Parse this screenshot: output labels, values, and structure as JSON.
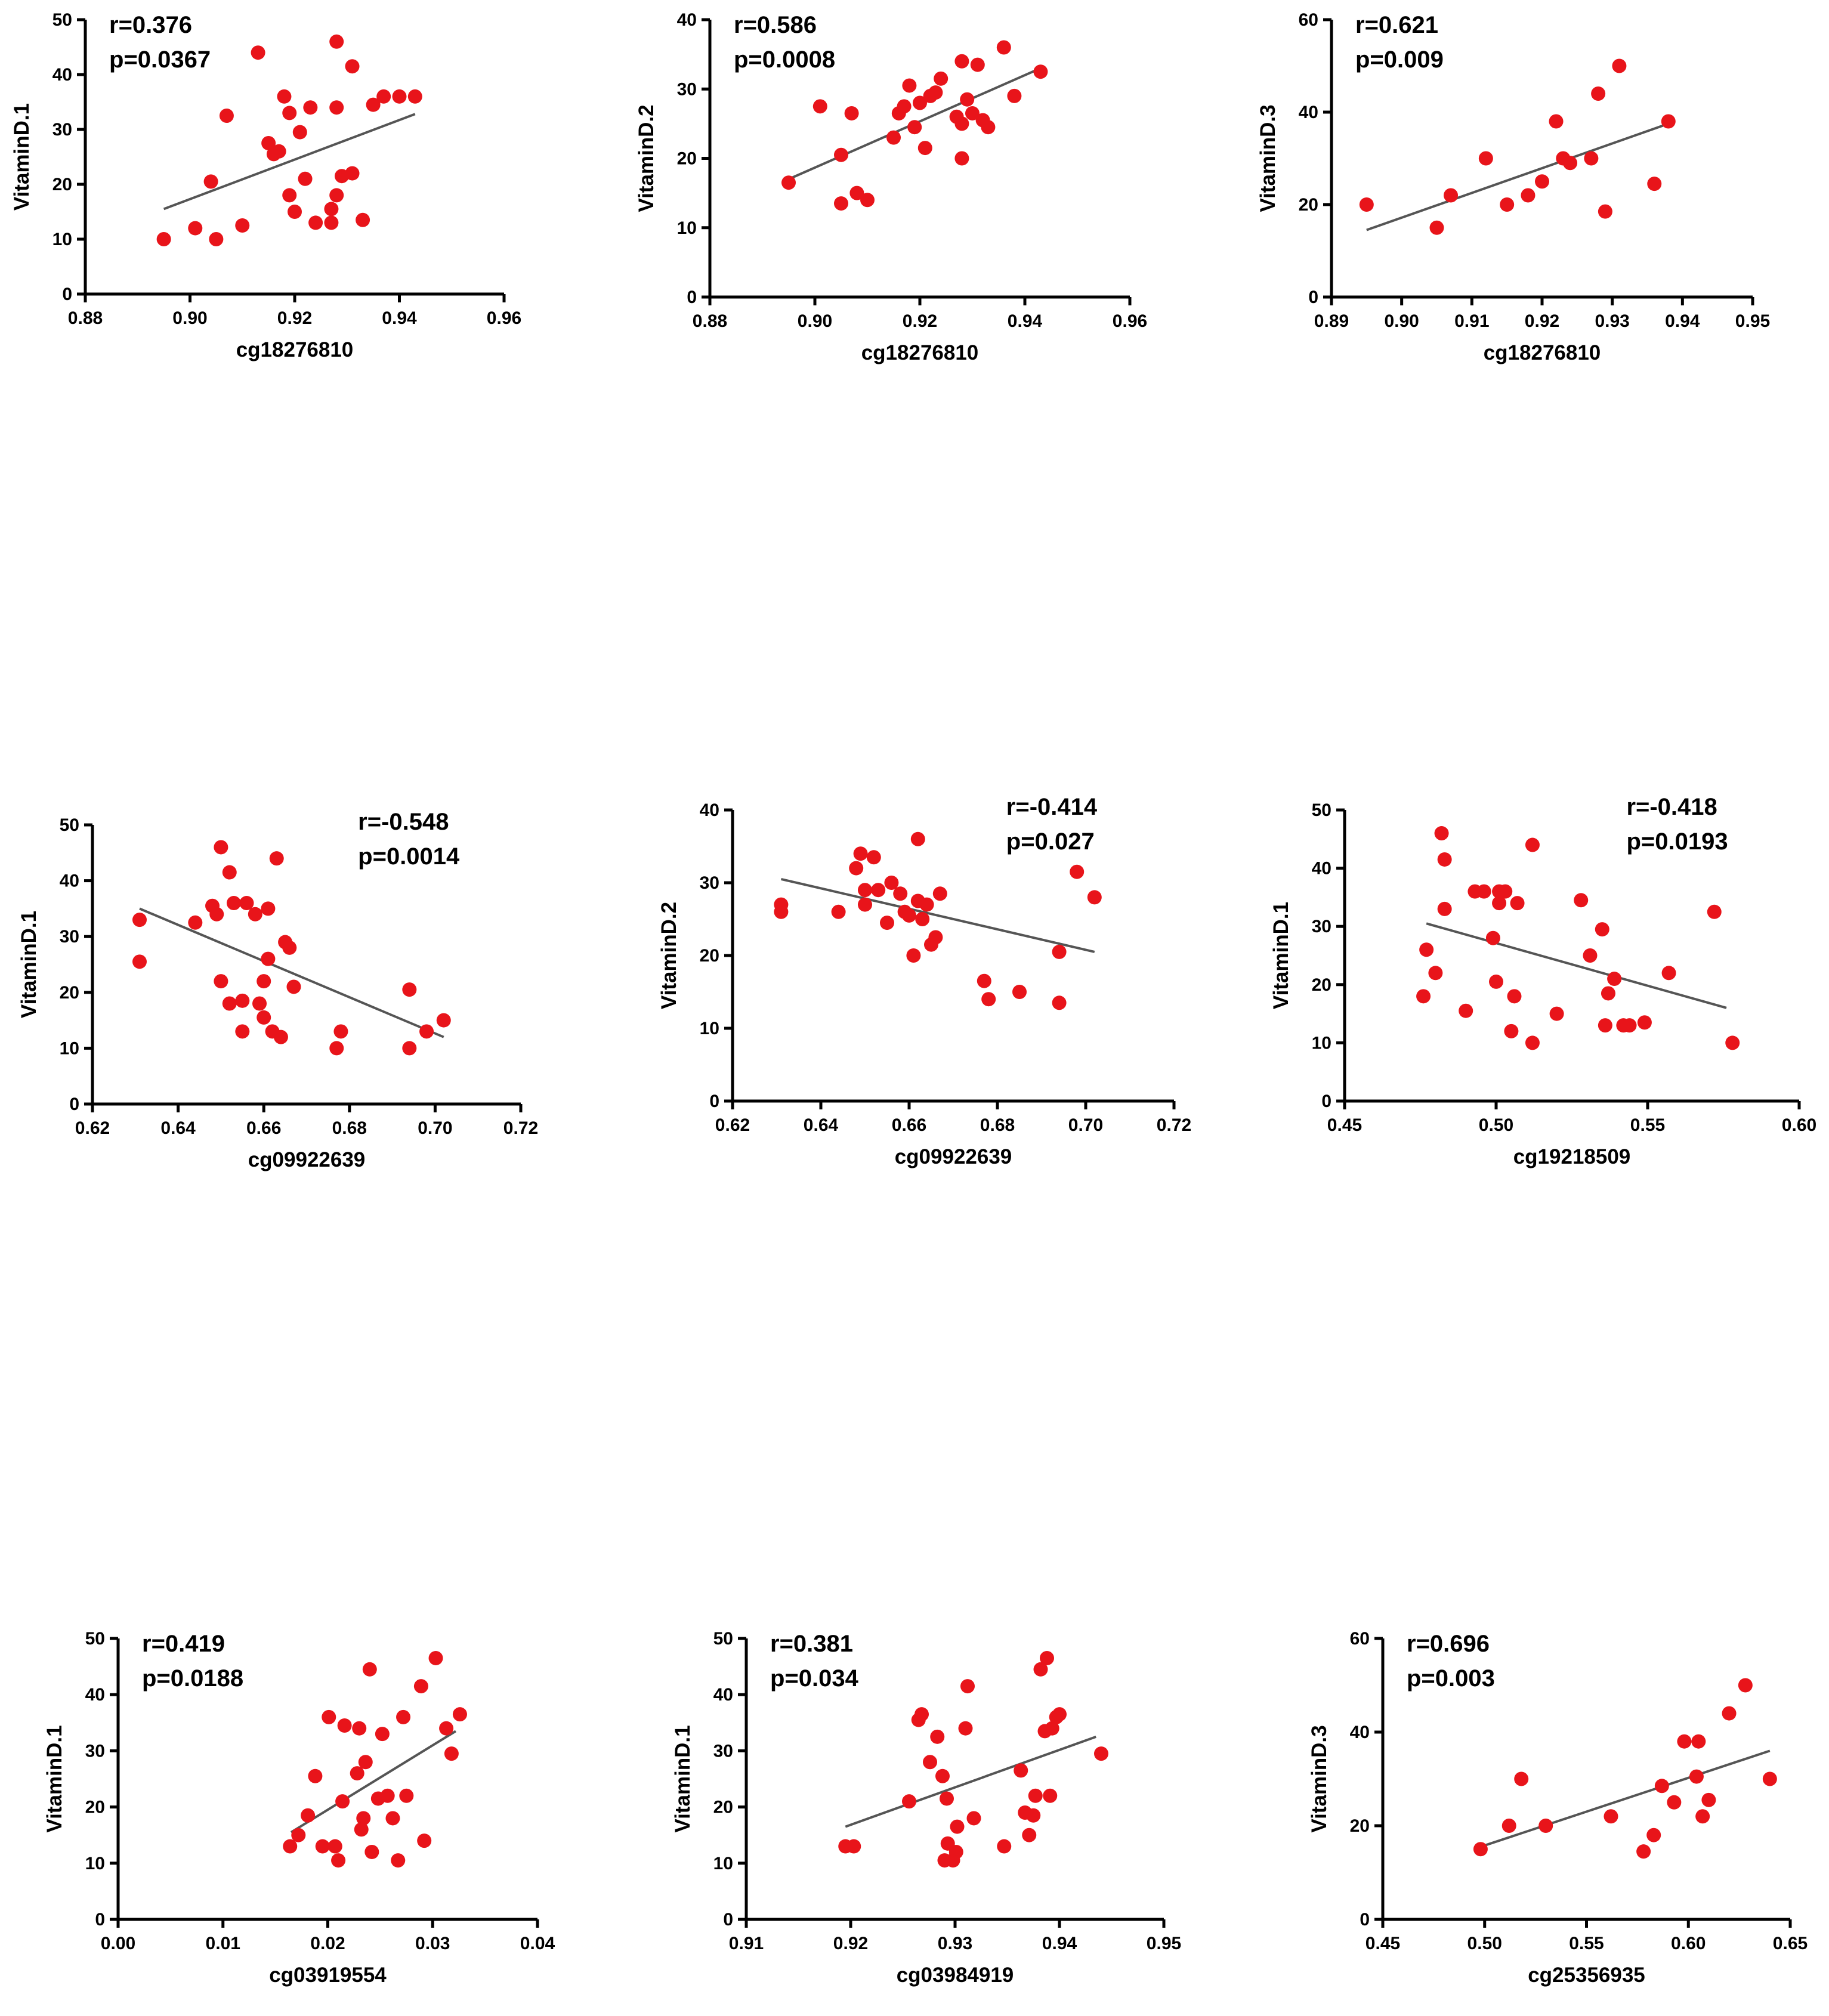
{
  "colors": {
    "point": "#e8141a",
    "fit_line": "#555555",
    "axis": "#000000"
  },
  "chart_data": [
    {
      "type": "scatter",
      "xlabel": "cg18276810",
      "ylabel": "VitaminD.1",
      "xlim": [
        0.88,
        0.96
      ],
      "ylim": [
        0,
        50
      ],
      "xticks": [
        "0.88",
        "0.90",
        "0.92",
        "0.94",
        "0.96"
      ],
      "yticks": [
        "0",
        "10",
        "20",
        "30",
        "40",
        "50"
      ],
      "annotation": {
        "r": "r=0.376",
        "p": "p=0.0367",
        "position": "top-left"
      },
      "fit": [
        [
          0.895,
          15.5
        ],
        [
          0.943,
          32.8
        ]
      ],
      "points": [
        [
          0.895,
          10
        ],
        [
          0.901,
          12
        ],
        [
          0.904,
          20.5
        ],
        [
          0.905,
          10
        ],
        [
          0.907,
          32.5
        ],
        [
          0.91,
          12.5
        ],
        [
          0.913,
          44
        ],
        [
          0.915,
          27.5
        ],
        [
          0.916,
          25.5
        ],
        [
          0.917,
          26
        ],
        [
          0.918,
          36
        ],
        [
          0.919,
          18
        ],
        [
          0.919,
          33
        ],
        [
          0.92,
          15
        ],
        [
          0.921,
          29.5
        ],
        [
          0.922,
          21
        ],
        [
          0.923,
          34
        ],
        [
          0.924,
          13
        ],
        [
          0.927,
          13
        ],
        [
          0.927,
          15.5
        ],
        [
          0.928,
          18
        ],
        [
          0.928,
          46
        ],
        [
          0.928,
          34
        ],
        [
          0.929,
          21.5
        ],
        [
          0.931,
          41.5
        ],
        [
          0.931,
          22
        ],
        [
          0.933,
          13.5
        ],
        [
          0.935,
          34.5
        ],
        [
          0.937,
          36
        ],
        [
          0.94,
          36
        ],
        [
          0.943,
          36
        ]
      ]
    },
    {
      "type": "scatter",
      "xlabel": "cg18276810",
      "ylabel": "VitaminD.2",
      "xlim": [
        0.88,
        0.96
      ],
      "ylim": [
        0,
        40
      ],
      "xticks": [
        "0.88",
        "0.90",
        "0.92",
        "0.94",
        "0.96"
      ],
      "yticks": [
        "0",
        "10",
        "20",
        "30",
        "40"
      ],
      "annotation": {
        "r": "r=0.586",
        "p": "p=0.0008",
        "position": "top-left"
      },
      "fit": [
        [
          0.895,
          17
        ],
        [
          0.943,
          33
        ]
      ],
      "points": [
        [
          0.895,
          16.5
        ],
        [
          0.901,
          27.5
        ],
        [
          0.905,
          20.5
        ],
        [
          0.905,
          13.5
        ],
        [
          0.907,
          26.5
        ],
        [
          0.908,
          15
        ],
        [
          0.91,
          14
        ],
        [
          0.915,
          23
        ],
        [
          0.916,
          26.5
        ],
        [
          0.917,
          27.5
        ],
        [
          0.918,
          30.5
        ],
        [
          0.919,
          24.5
        ],
        [
          0.92,
          28
        ],
        [
          0.921,
          21.5
        ],
        [
          0.922,
          29
        ],
        [
          0.923,
          29.5
        ],
        [
          0.924,
          31.5
        ],
        [
          0.927,
          26
        ],
        [
          0.928,
          20
        ],
        [
          0.928,
          25
        ],
        [
          0.928,
          34
        ],
        [
          0.929,
          28.5
        ],
        [
          0.93,
          26.5
        ],
        [
          0.931,
          33.5
        ],
        [
          0.932,
          25.5
        ],
        [
          0.933,
          24.5
        ],
        [
          0.936,
          36
        ],
        [
          0.938,
          29
        ],
        [
          0.943,
          32.5
        ]
      ]
    },
    {
      "type": "scatter",
      "xlabel": "cg18276810",
      "ylabel": "VitaminD.3",
      "xlim": [
        0.89,
        0.95
      ],
      "ylim": [
        0,
        60
      ],
      "xticks": [
        "0.89",
        "0.90",
        "0.91",
        "0.92",
        "0.93",
        "0.94",
        "0.95"
      ],
      "yticks": [
        "0",
        "20",
        "40",
        "60"
      ],
      "annotation": {
        "r": "r=0.621",
        "p": "p=0.009",
        "position": "top-left"
      },
      "fit": [
        [
          0.895,
          14.5
        ],
        [
          0.938,
          37.5
        ]
      ],
      "points": [
        [
          0.895,
          20
        ],
        [
          0.905,
          15
        ],
        [
          0.907,
          22
        ],
        [
          0.912,
          30
        ],
        [
          0.915,
          20
        ],
        [
          0.918,
          22
        ],
        [
          0.92,
          25
        ],
        [
          0.922,
          38
        ],
        [
          0.923,
          30
        ],
        [
          0.924,
          29
        ],
        [
          0.927,
          30
        ],
        [
          0.928,
          44
        ],
        [
          0.929,
          18.5
        ],
        [
          0.931,
          50
        ],
        [
          0.936,
          24.5
        ],
        [
          0.938,
          38
        ]
      ]
    },
    {
      "type": "scatter",
      "xlabel": "cg09922639",
      "ylabel": "VitaminD.1",
      "xlim": [
        0.62,
        0.72
      ],
      "ylim": [
        0,
        50
      ],
      "xticks": [
        "0.62",
        "0.64",
        "0.66",
        "0.68",
        "0.70",
        "0.72"
      ],
      "yticks": [
        "0",
        "10",
        "20",
        "30",
        "40",
        "50"
      ],
      "annotation": {
        "r": "r=-0.548",
        "p": "p=0.0014",
        "position": "top-right"
      },
      "fit": [
        [
          0.631,
          35
        ],
        [
          0.702,
          12
        ]
      ],
      "points": [
        [
          0.631,
          33
        ],
        [
          0.631,
          25.5
        ],
        [
          0.644,
          32.5
        ],
        [
          0.648,
          35.5
        ],
        [
          0.649,
          34
        ],
        [
          0.65,
          46
        ],
        [
          0.65,
          22
        ],
        [
          0.652,
          18
        ],
        [
          0.652,
          41.5
        ],
        [
          0.653,
          36
        ],
        [
          0.655,
          18.5
        ],
        [
          0.655,
          13
        ],
        [
          0.656,
          36
        ],
        [
          0.658,
          34
        ],
        [
          0.659,
          18
        ],
        [
          0.66,
          22
        ],
        [
          0.66,
          15.5
        ],
        [
          0.661,
          26
        ],
        [
          0.661,
          35
        ],
        [
          0.662,
          13
        ],
        [
          0.663,
          44
        ],
        [
          0.664,
          12
        ],
        [
          0.665,
          29
        ],
        [
          0.666,
          28
        ],
        [
          0.667,
          21
        ],
        [
          0.677,
          10
        ],
        [
          0.678,
          13
        ],
        [
          0.694,
          20.5
        ],
        [
          0.694,
          10
        ],
        [
          0.698,
          13
        ],
        [
          0.702,
          15
        ]
      ]
    },
    {
      "type": "scatter",
      "xlabel": "cg09922639",
      "ylabel": "VitaminD.2",
      "xlim": [
        0.62,
        0.72
      ],
      "ylim": [
        0,
        40
      ],
      "xticks": [
        "0.62",
        "0.64",
        "0.66",
        "0.68",
        "0.70",
        "0.72"
      ],
      "yticks": [
        "0",
        "10",
        "20",
        "30",
        "40"
      ],
      "annotation": {
        "r": "r=-0.414",
        "p": "p=0.027",
        "position": "top-right"
      },
      "fit": [
        [
          0.631,
          30.5
        ],
        [
          0.702,
          20.5
        ]
      ],
      "points": [
        [
          0.631,
          27
        ],
        [
          0.631,
          26
        ],
        [
          0.644,
          26
        ],
        [
          0.648,
          32
        ],
        [
          0.649,
          34
        ],
        [
          0.65,
          29
        ],
        [
          0.65,
          27
        ],
        [
          0.652,
          33.5
        ],
        [
          0.653,
          29
        ],
        [
          0.655,
          24.5
        ],
        [
          0.656,
          30
        ],
        [
          0.658,
          28.5
        ],
        [
          0.659,
          26
        ],
        [
          0.66,
          25.5
        ],
        [
          0.661,
          20
        ],
        [
          0.662,
          36
        ],
        [
          0.662,
          27.5
        ],
        [
          0.663,
          25
        ],
        [
          0.664,
          27
        ],
        [
          0.665,
          21.5
        ],
        [
          0.666,
          22.5
        ],
        [
          0.667,
          28.5
        ],
        [
          0.677,
          16.5
        ],
        [
          0.678,
          14
        ],
        [
          0.685,
          15
        ],
        [
          0.694,
          20.5
        ],
        [
          0.694,
          13.5
        ],
        [
          0.698,
          31.5
        ],
        [
          0.702,
          28
        ]
      ]
    },
    {
      "type": "scatter",
      "xlabel": "cg19218509",
      "ylabel": "VitaminD.1",
      "xlim": [
        0.45,
        0.6
      ],
      "ylim": [
        0,
        50
      ],
      "xticks": [
        "0.45",
        "0.50",
        "0.55",
        "0.60"
      ],
      "yticks": [
        "0",
        "10",
        "20",
        "30",
        "40",
        "50"
      ],
      "annotation": {
        "r": "r=-0.418",
        "p": "p=0.0193",
        "position": "top-right"
      },
      "fit": [
        [
          0.477,
          30.5
        ],
        [
          0.576,
          16
        ]
      ],
      "points": [
        [
          0.476,
          18
        ],
        [
          0.477,
          26
        ],
        [
          0.48,
          22
        ],
        [
          0.482,
          46
        ],
        [
          0.483,
          41.5
        ],
        [
          0.483,
          33
        ],
        [
          0.49,
          15.5
        ],
        [
          0.493,
          36
        ],
        [
          0.496,
          36
        ],
        [
          0.499,
          28
        ],
        [
          0.5,
          20.5
        ],
        [
          0.501,
          36
        ],
        [
          0.501,
          34
        ],
        [
          0.503,
          36
        ],
        [
          0.505,
          12
        ],
        [
          0.506,
          18
        ],
        [
          0.507,
          34
        ],
        [
          0.512,
          10
        ],
        [
          0.512,
          44
        ],
        [
          0.52,
          15
        ],
        [
          0.528,
          34.5
        ],
        [
          0.531,
          25
        ],
        [
          0.535,
          29.5
        ],
        [
          0.536,
          13
        ],
        [
          0.537,
          18.5
        ],
        [
          0.539,
          21
        ],
        [
          0.542,
          13
        ],
        [
          0.544,
          13
        ],
        [
          0.549,
          13.5
        ],
        [
          0.557,
          22
        ],
        [
          0.572,
          32.5
        ],
        [
          0.578,
          10
        ]
      ]
    },
    {
      "type": "scatter",
      "xlabel": "cg03919554",
      "ylabel": "VitaminD.1",
      "xlim": [
        0.0,
        0.04
      ],
      "ylim": [
        0,
        50
      ],
      "xticks": [
        "0.00",
        "0.01",
        "0.02",
        "0.03",
        "0.04"
      ],
      "yticks": [
        "0",
        "10",
        "20",
        "30",
        "40",
        "50"
      ],
      "annotation": {
        "r": "r=0.419",
        "p": "p=0.0188",
        "position": "top-left"
      },
      "fit": [
        [
          0.0165,
          15.5
        ],
        [
          0.0322,
          33.5
        ]
      ],
      "points": [
        [
          0.0164,
          13
        ],
        [
          0.0172,
          15
        ],
        [
          0.0181,
          18.5
        ],
        [
          0.0188,
          25.5
        ],
        [
          0.0195,
          13
        ],
        [
          0.0201,
          36
        ],
        [
          0.0207,
          13
        ],
        [
          0.021,
          10.5
        ],
        [
          0.0214,
          21
        ],
        [
          0.0216,
          34.5
        ],
        [
          0.0228,
          26
        ],
        [
          0.023,
          34
        ],
        [
          0.0232,
          16
        ],
        [
          0.0234,
          18
        ],
        [
          0.0236,
          28
        ],
        [
          0.024,
          44.5
        ],
        [
          0.0242,
          12
        ],
        [
          0.0248,
          21.5
        ],
        [
          0.0252,
          33
        ],
        [
          0.0257,
          22
        ],
        [
          0.0262,
          18
        ],
        [
          0.0267,
          10.5
        ],
        [
          0.0272,
          36
        ],
        [
          0.0275,
          22
        ],
        [
          0.0289,
          41.5
        ],
        [
          0.0292,
          14
        ],
        [
          0.0303,
          46.5
        ],
        [
          0.0313,
          34
        ],
        [
          0.0318,
          29.5
        ],
        [
          0.0326,
          36.5
        ]
      ]
    },
    {
      "type": "scatter",
      "xlabel": "cg03984919",
      "ylabel": "VitaminD.1",
      "xlim": [
        0.91,
        0.95
      ],
      "ylim": [
        0,
        50
      ],
      "xticks": [
        "0.91",
        "0.92",
        "0.93",
        "0.94",
        "0.95"
      ],
      "yticks": [
        "0",
        "10",
        "20",
        "30",
        "40",
        "50"
      ],
      "annotation": {
        "r": "r=0.381",
        "p": "p=0.034",
        "position": "top-left"
      },
      "fit": [
        [
          0.9195,
          16.5
        ],
        [
          0.9435,
          32.5
        ]
      ],
      "points": [
        [
          0.9195,
          13
        ],
        [
          0.9203,
          13
        ],
        [
          0.9256,
          21
        ],
        [
          0.9265,
          35.5
        ],
        [
          0.9268,
          36.5
        ],
        [
          0.9276,
          28
        ],
        [
          0.9283,
          32.5
        ],
        [
          0.9288,
          25.5
        ],
        [
          0.929,
          10.5
        ],
        [
          0.9292,
          21.5
        ],
        [
          0.9293,
          13.5
        ],
        [
          0.9298,
          10.5
        ],
        [
          0.9301,
          12
        ],
        [
          0.9302,
          16.5
        ],
        [
          0.931,
          34
        ],
        [
          0.9312,
          41.5
        ],
        [
          0.9318,
          18
        ],
        [
          0.9347,
          13
        ],
        [
          0.9363,
          26.5
        ],
        [
          0.9367,
          19
        ],
        [
          0.9371,
          15
        ],
        [
          0.9375,
          18.5
        ],
        [
          0.9377,
          22
        ],
        [
          0.9382,
          44.5
        ],
        [
          0.9386,
          33.5
        ],
        [
          0.9388,
          46.5
        ],
        [
          0.9391,
          22
        ],
        [
          0.9393,
          34
        ],
        [
          0.9397,
          36
        ],
        [
          0.94,
          36.5
        ],
        [
          0.944,
          29.5
        ]
      ]
    },
    {
      "type": "scatter",
      "xlabel": "cg25356935",
      "ylabel": "VitaminD.3",
      "xlim": [
        0.45,
        0.65
      ],
      "ylim": [
        0,
        60
      ],
      "xticks": [
        "0.45",
        "0.50",
        "0.55",
        "0.60",
        "0.65"
      ],
      "yticks": [
        "0",
        "20",
        "40",
        "60"
      ],
      "annotation": {
        "r": "r=0.696",
        "p": "p=0.003",
        "position": "top-left"
      },
      "fit": [
        [
          0.498,
          15.5
        ],
        [
          0.64,
          36
        ]
      ],
      "points": [
        [
          0.498,
          15
        ],
        [
          0.512,
          20
        ],
        [
          0.518,
          30
        ],
        [
          0.53,
          20
        ],
        [
          0.562,
          22
        ],
        [
          0.578,
          14.5
        ],
        [
          0.583,
          18
        ],
        [
          0.587,
          28.5
        ],
        [
          0.593,
          25
        ],
        [
          0.598,
          38
        ],
        [
          0.604,
          30.5
        ],
        [
          0.605,
          38
        ],
        [
          0.607,
          22
        ],
        [
          0.61,
          25.5
        ],
        [
          0.62,
          44
        ],
        [
          0.628,
          50
        ],
        [
          0.64,
          30
        ]
      ]
    }
  ]
}
